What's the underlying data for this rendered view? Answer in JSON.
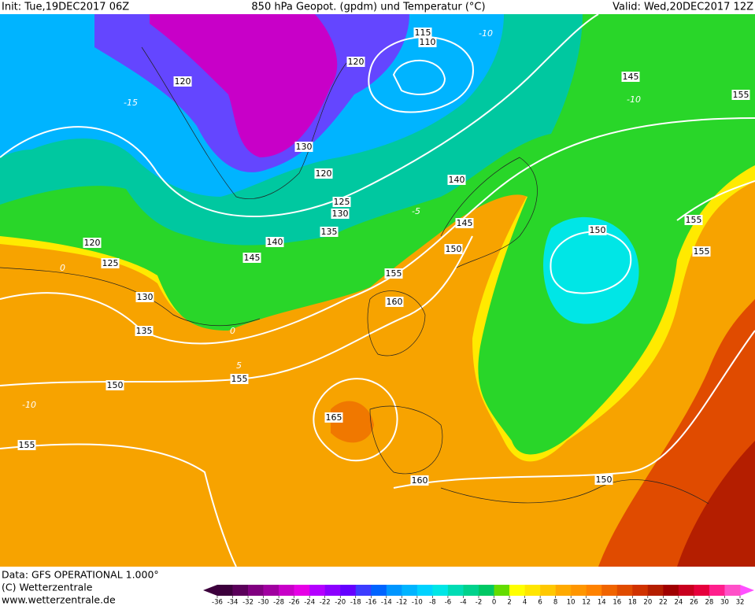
{
  "header": {
    "init": "Init: Tue,19DEC2017 06Z",
    "title": "850 hPa Geopot. (gpdm) und Temperatur (°C)",
    "valid": "Valid: Wed,20DEC2017 12Z"
  },
  "footer": {
    "data_source": "Data: GFS OPERATIONAL 1.000°",
    "copyright": "(C) Wetterzentrale",
    "website": "www.wetterzentrale.de"
  },
  "contour_labels": [
    "115",
    "110",
    "120",
    "145",
    "155",
    "120",
    "130",
    "120",
    "140",
    "125",
    "130",
    "135",
    "140",
    "145",
    "145",
    "150",
    "155",
    "160",
    "150",
    "155",
    "155",
    "120",
    "125",
    "130",
    "135",
    "150",
    "155",
    "165",
    "155",
    "160",
    "150"
  ],
  "isotherm_labels": [
    "-10",
    "-10",
    "-15",
    "-5",
    "0",
    "0",
    "5",
    "-10"
  ],
  "colorbar": {
    "ticks": [
      -36,
      -34,
      -32,
      -30,
      -28,
      -26,
      -24,
      -22,
      -20,
      -18,
      -16,
      -14,
      -12,
      -10,
      -8,
      -6,
      -4,
      -2,
      0,
      2,
      4,
      6,
      8,
      10,
      12,
      14,
      16,
      18,
      20,
      22,
      24,
      26,
      28,
      30,
      32
    ],
    "colors": [
      "#3c003c",
      "#5a005a",
      "#800080",
      "#a000a0",
      "#c800c8",
      "#e600e6",
      "#b400ff",
      "#8c00ff",
      "#6400ff",
      "#3c3cff",
      "#0064ff",
      "#0096ff",
      "#00b4ff",
      "#00d2ff",
      "#00e6e6",
      "#00dcb4",
      "#00d28c",
      "#00c864",
      "#64dc00",
      "#ffff00",
      "#ffe600",
      "#ffc800",
      "#ffaa00",
      "#ff9600",
      "#ff8200",
      "#f06400",
      "#e04b00",
      "#d03200",
      "#b41e00",
      "#a00000",
      "#c8001e",
      "#e6003c",
      "#ff1e8c",
      "#ff50c8"
    ],
    "under_color": "#3c003c",
    "over_color": "#ff50ff"
  }
}
